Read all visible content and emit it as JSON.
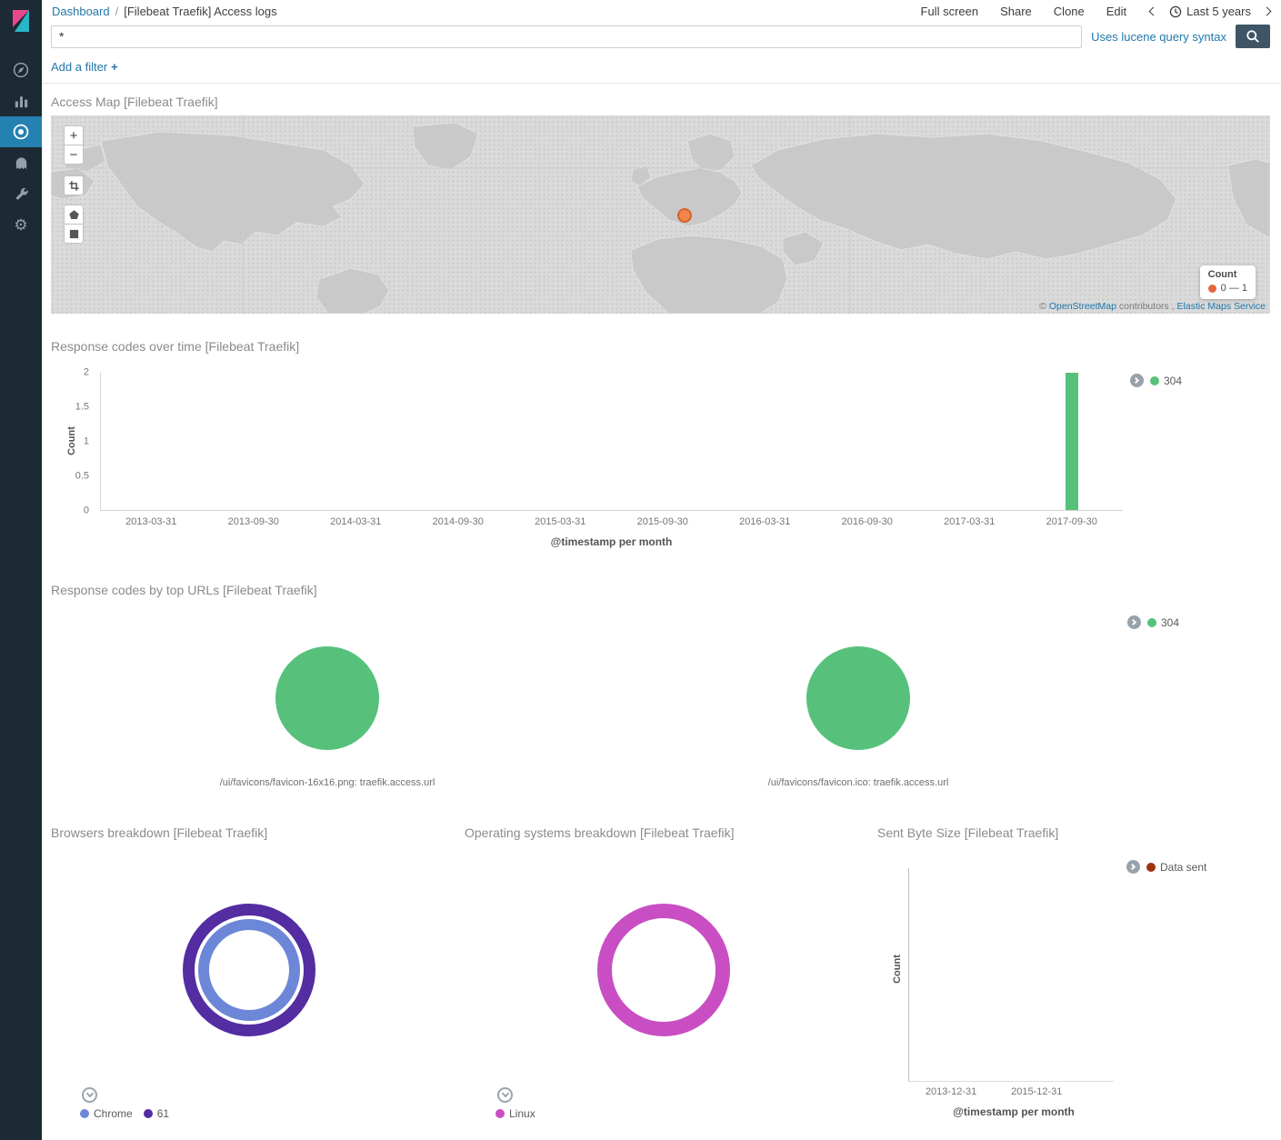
{
  "app": {
    "link_color": "#2277ab",
    "sidebar_bg": "#1c2a33",
    "sidebar_selected_bg": "#2581b0"
  },
  "sidebar": {
    "items": [
      {
        "name": "discover",
        "icon": "compass-icon"
      },
      {
        "name": "visualize",
        "icon": "bar-chart-icon"
      },
      {
        "name": "dashboard",
        "icon": "dashboard-icon",
        "selected": true
      },
      {
        "name": "timelion",
        "icon": "timelion-icon"
      },
      {
        "name": "dev-tools",
        "icon": "wrench-icon"
      },
      {
        "name": "management",
        "icon": "gear-icon"
      }
    ]
  },
  "topnav": {
    "breadcrumb": "Dashboard",
    "separator": "/",
    "page_title": "[Filebeat Traefik] Access logs",
    "actions": [
      {
        "label": "Full screen"
      },
      {
        "label": "Share"
      },
      {
        "label": "Clone"
      },
      {
        "label": "Edit"
      }
    ],
    "time_range": "Last 5 years",
    "icons": {
      "prev": "chevron-left-icon",
      "clock": "clock-icon",
      "next": "chevron-right-icon"
    }
  },
  "querybar": {
    "value": "*",
    "syntax_hint": "Uses lucene query syntax",
    "search_icon": "magnifier-icon"
  },
  "filterbar": {
    "add_filter": "Add a filter",
    "plus": "+"
  },
  "map_panel": {
    "title": "Access Map [Filebeat Traefik]",
    "zoom_in": "+",
    "zoom_out": "−",
    "tools": [
      "crop-icon",
      "polygon-draw-icon",
      "rectangle-draw-icon"
    ],
    "marker_color": "#f0864e",
    "attribution": {
      "copy": "©",
      "osm_link": "OpenStreetMap",
      "contributors": "contributors ,",
      "elastic_link": "Elastic Maps Service"
    },
    "legend": {
      "title": "Count",
      "range": "0 — 1",
      "dot_color": "#e5683d"
    }
  },
  "chart_data": [
    {
      "id": "response_codes_over_time",
      "type": "bar",
      "title": "Response codes over time [Filebeat Traefik]",
      "xlabel": "@timestamp per month",
      "ylabel": "Count",
      "ylim": [
        0,
        2
      ],
      "yticks": [
        0,
        0.5,
        1,
        1.5,
        2
      ],
      "categories": [
        "2013-03-31",
        "2013-09-30",
        "2014-03-31",
        "2014-09-30",
        "2015-03-31",
        "2015-09-30",
        "2016-03-31",
        "2016-09-30",
        "2017-03-31",
        "2017-09-30"
      ],
      "series": [
        {
          "name": "304",
          "color": "#57c17b",
          "values": [
            0,
            0,
            0,
            0,
            0,
            0,
            0,
            0,
            0,
            2
          ]
        }
      ],
      "legend_position": "right",
      "grid": false
    },
    {
      "id": "response_codes_by_top_urls",
      "type": "pie",
      "title": "Response codes by top URLs [Filebeat Traefik]",
      "legend": [
        {
          "name": "304",
          "color": "#57c17b"
        }
      ],
      "pies": [
        {
          "label": "/ui/favicons/favicon-16x16.png: traefik.access.url",
          "slices": [
            {
              "name": "304",
              "value": 100,
              "color": "#57c17b"
            }
          ]
        },
        {
          "label": "/ui/favicons/favicon.ico: traefik.access.url",
          "slices": [
            {
              "name": "304",
              "value": 100,
              "color": "#57c17b"
            }
          ]
        }
      ]
    },
    {
      "id": "browsers_breakdown",
      "type": "pie",
      "donut": true,
      "title": "Browsers breakdown [Filebeat Traefik]",
      "rings": [
        {
          "name": "Chrome",
          "level": "inner",
          "value": 100,
          "color": "#6d87d8"
        },
        {
          "name": "61",
          "level": "outer",
          "value": 100,
          "color": "#532da1"
        }
      ],
      "legend": [
        {
          "name": "Chrome",
          "color": "#6d87d8"
        },
        {
          "name": "61",
          "color": "#532da1"
        }
      ]
    },
    {
      "id": "os_breakdown",
      "type": "pie",
      "donut": true,
      "title": "Operating systems breakdown [Filebeat Traefik]",
      "rings": [
        {
          "name": "Linux",
          "level": "outer",
          "value": 100,
          "color": "#c94ec3"
        }
      ],
      "legend": [
        {
          "name": "Linux",
          "color": "#c94ec3"
        }
      ]
    },
    {
      "id": "sent_byte_size",
      "type": "line",
      "title": "Sent Byte Size [Filebeat Traefik]",
      "xlabel": "@timestamp per month",
      "ylabel": "Count",
      "xticks": [
        "2013-12-31",
        "2015-12-31"
      ],
      "series": [
        {
          "name": "Data sent",
          "color": "#a0300f",
          "values": []
        }
      ],
      "legend_position": "right",
      "grid": false
    }
  ]
}
